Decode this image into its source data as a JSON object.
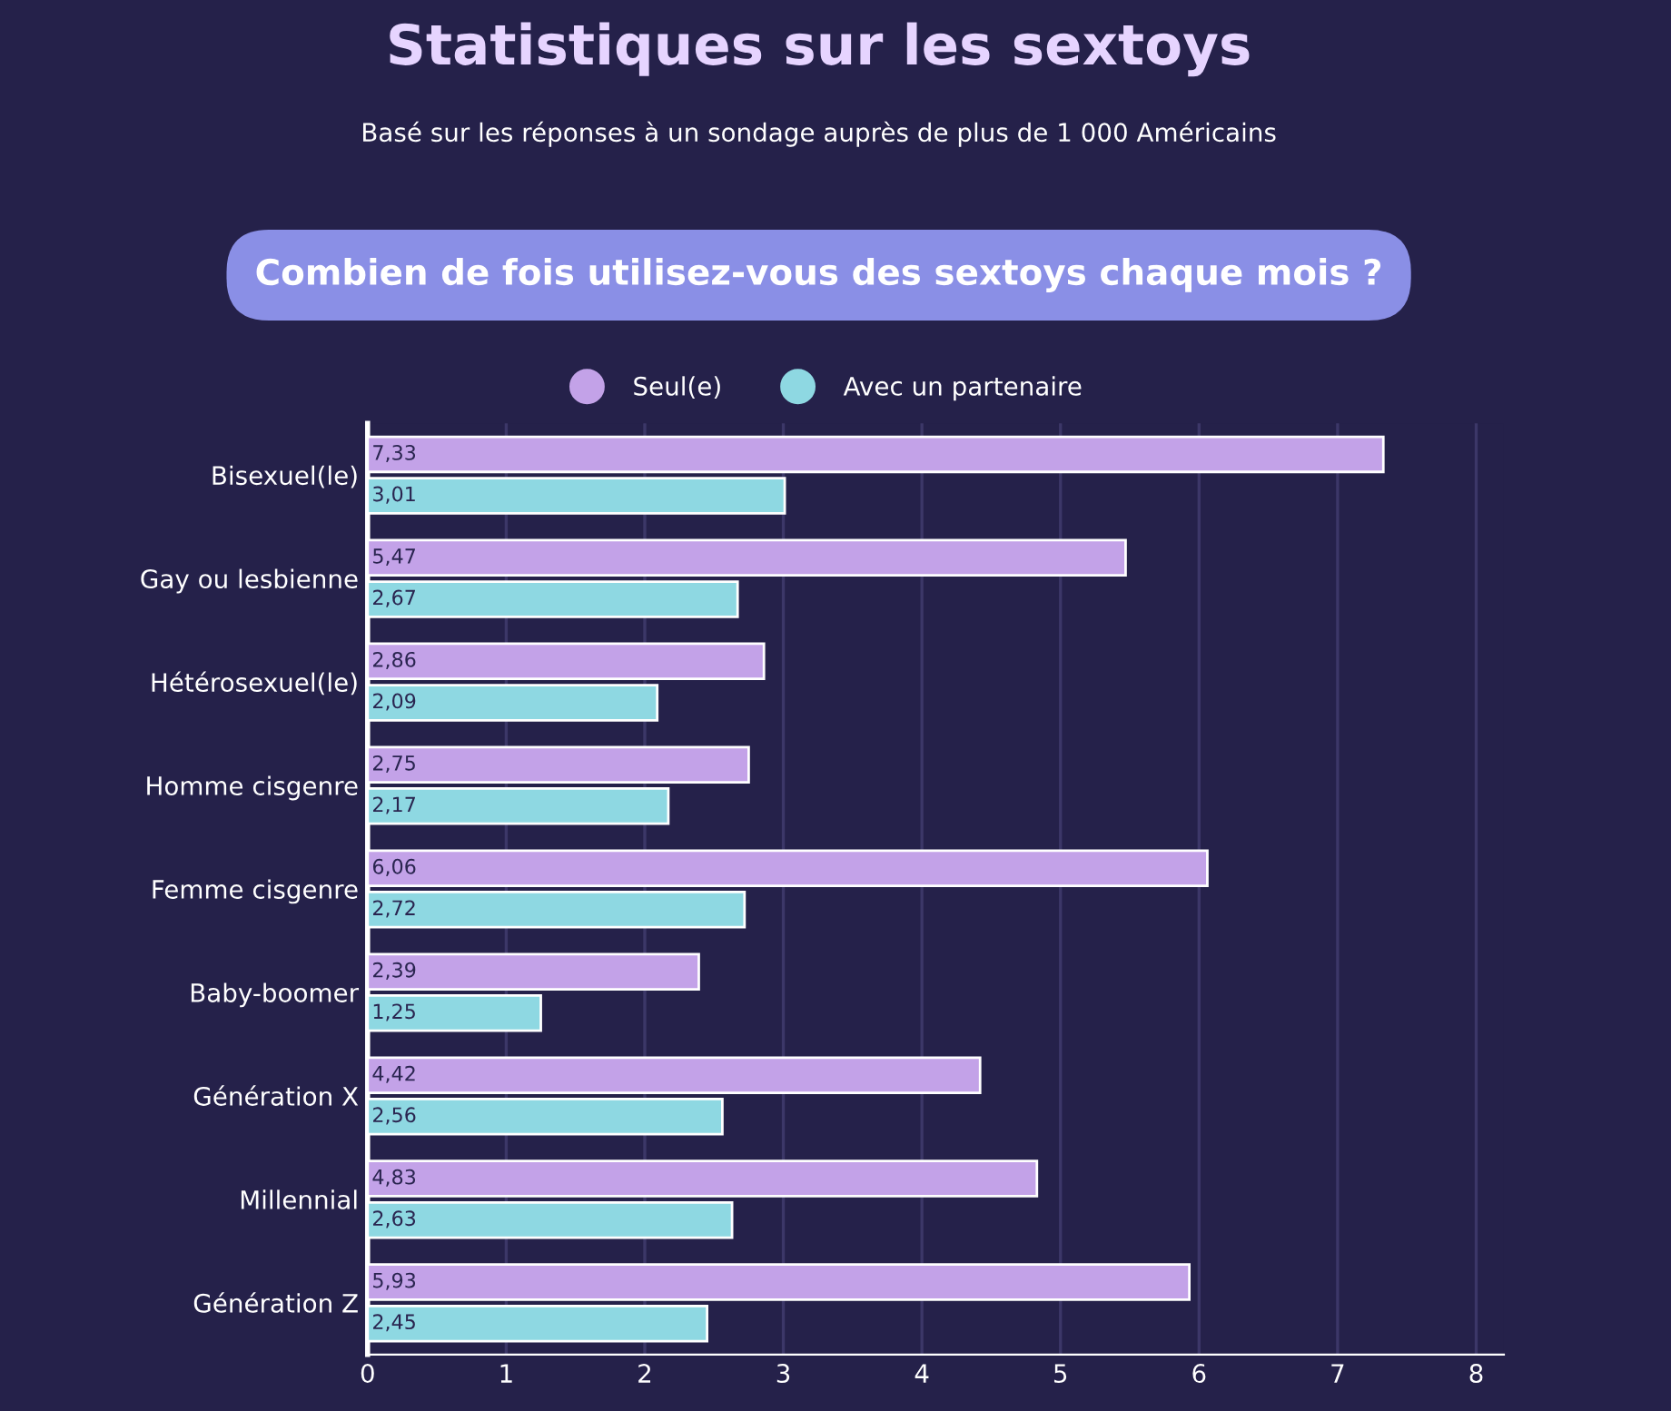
{
  "chart_data": {
    "type": "bar",
    "orientation": "horizontal",
    "title": "Statistiques sur les sextoys",
    "subtitle": "Basé sur les réponses à un sondage auprès de plus de 1 000 Américains",
    "annotations": [
      "Combien de fois utilisez-vous des sextoys chaque mois ?"
    ],
    "categories": [
      "Bisexuel(le)",
      "Gay ou lesbienne",
      "Hétérosexuel(le)",
      "Homme cisgenre",
      "Femme cisgenre",
      "Baby-boomer",
      "Génération X",
      "Millennial",
      "Génération Z"
    ],
    "series": [
      {
        "name": "Seul(e)",
        "color": "#c3a2e8",
        "values": [
          7.33,
          5.47,
          2.86,
          2.75,
          6.06,
          2.39,
          4.42,
          4.83,
          5.93
        ],
        "value_labels": [
          "7,33",
          "5,47",
          "2,86",
          "2,75",
          "6,06",
          "2,39",
          "4,42",
          "4,83",
          "5,93"
        ]
      },
      {
        "name": "Avec un partenaire",
        "color": "#8ed8e2",
        "values": [
          3.01,
          2.67,
          2.09,
          2.17,
          2.72,
          1.25,
          2.56,
          2.63,
          2.45
        ],
        "value_labels": [
          "3,01",
          "2,67",
          "2,09",
          "2,17",
          "2,72",
          "1,25",
          "2,56",
          "2,63",
          "2,45"
        ]
      }
    ],
    "xlim": [
      0,
      8.2
    ],
    "xticks": [
      0,
      1,
      2,
      3,
      4,
      5,
      6,
      7,
      8
    ],
    "grid": "x",
    "legend": "top"
  }
}
